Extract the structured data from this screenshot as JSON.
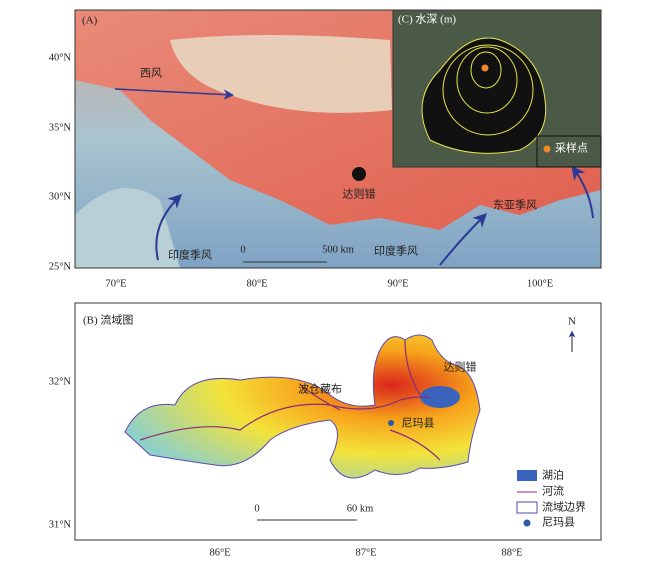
{
  "panel_a": {
    "label": "(A)",
    "lat_ticks": [
      "40°N",
      "35°N",
      "30°N",
      "25°N"
    ],
    "lon_ticks": [
      "70°E",
      "80°E",
      "90°E",
      "100°E"
    ],
    "westerly": "西风",
    "lake": "达则错",
    "east_asian_monsoon": "东亚季风",
    "indian_monsoon_1": "印度季风",
    "indian_monsoon_2": "印度季风",
    "scale": [
      "0",
      "500 km"
    ],
    "inset": {
      "label": "(C) 水深 (m)",
      "sampling_point": "采样点"
    }
  },
  "panel_b": {
    "label": "(B) 流域图",
    "north": "N",
    "lat_ticks": [
      "32°N",
      "31°N"
    ],
    "lon_ticks": [
      "86°E",
      "87°E",
      "88°E"
    ],
    "river": "波仓藏布",
    "lake": "达则错",
    "county": "尼玛县",
    "scale": [
      "0",
      "60 km"
    ],
    "legend": [
      "湖泊",
      "河流",
      "流域边界",
      "尼玛县"
    ]
  }
}
